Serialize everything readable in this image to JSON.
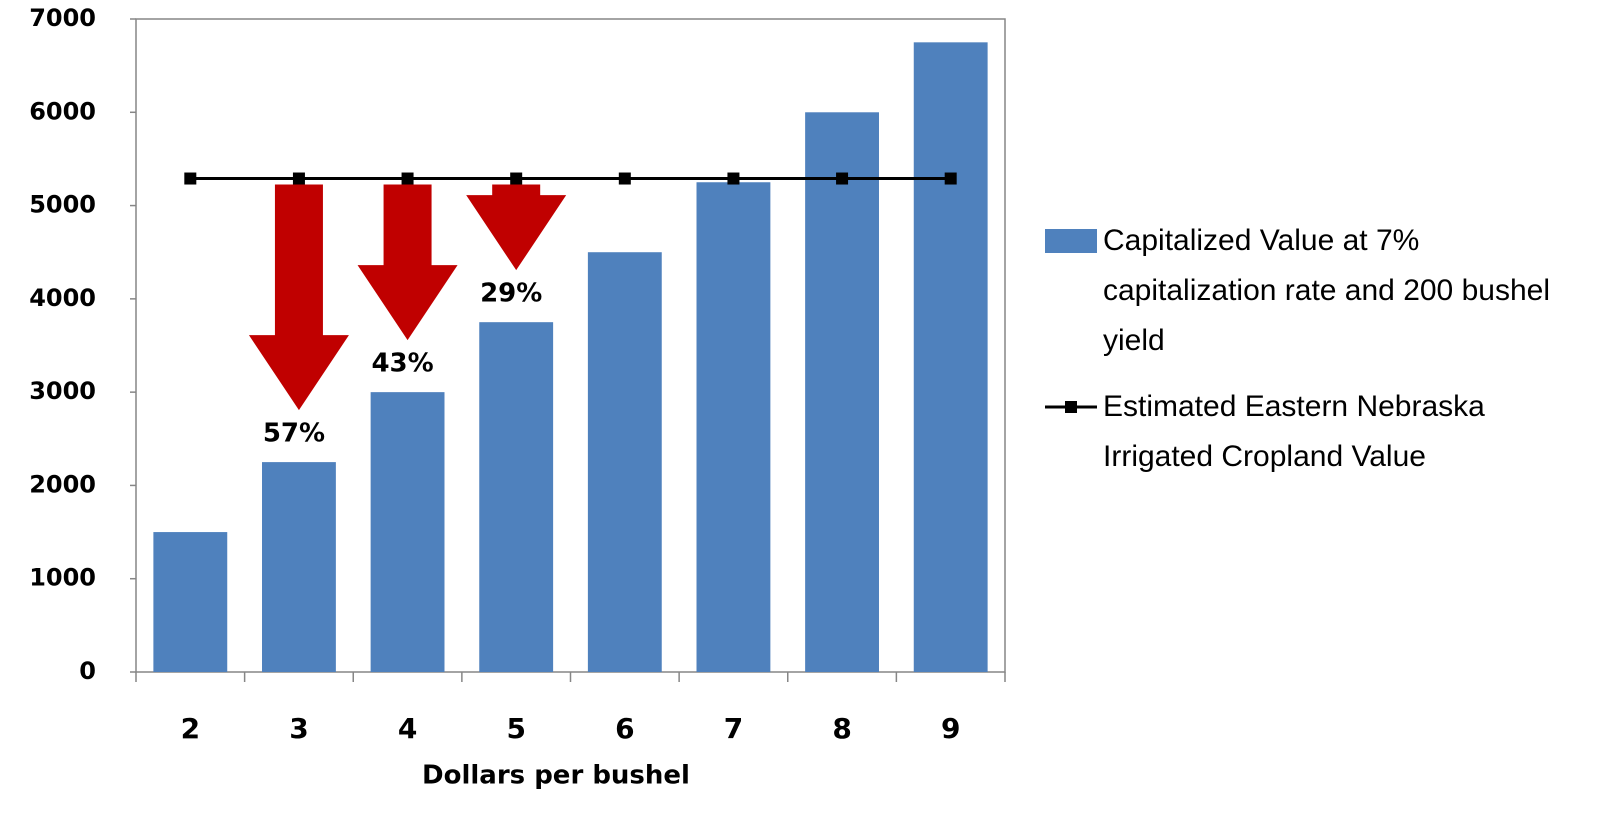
{
  "chart_data": {
    "type": "bar",
    "x_label": "Dollars per bushel",
    "categories": [
      "2",
      "3",
      "4",
      "5",
      "6",
      "7",
      "8",
      "9"
    ],
    "series": [
      {
        "name": "Capitalized Value at 7% capitalization rate and 200 bushel yield",
        "type": "bar",
        "color": "#4f81bd",
        "values": [
          1500,
          2250,
          3000,
          3750,
          4500,
          5250,
          6000,
          6750
        ]
      },
      {
        "name": "Estimated Eastern Nebraska Irrigated Cropland Value",
        "type": "line",
        "color": "#000000",
        "values": [
          5290,
          5290,
          5290,
          5290,
          5290,
          5290,
          5290,
          5290
        ]
      }
    ],
    "annotations": [
      "57%",
      "43%",
      "29%"
    ],
    "annotation_color": "#c00000",
    "ylim": [
      0,
      7000
    ],
    "yticks": [
      0,
      1000,
      2000,
      3000,
      4000,
      5000,
      6000,
      7000
    ],
    "grid": false,
    "legend": "right"
  }
}
